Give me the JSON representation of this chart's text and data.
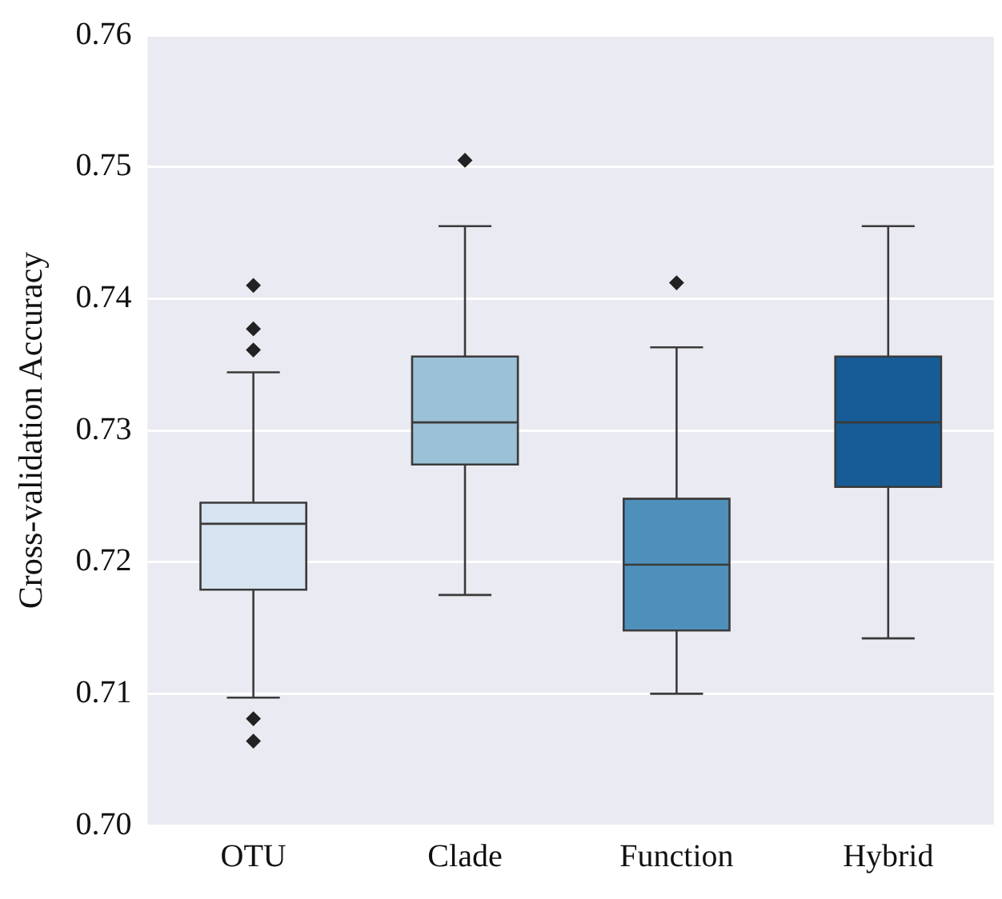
{
  "chart_data": {
    "type": "box",
    "ylabel": "Cross-validation Accuracy",
    "categories": [
      "OTU",
      "Clade",
      "Function",
      "Hybrid"
    ],
    "colors": [
      "#d6e3f0",
      "#9bc1d6",
      "#4f90bb",
      "#175c96"
    ],
    "boxes": [
      {
        "low": 0.7097,
        "q1": 0.7179,
        "median": 0.7229,
        "q3": 0.7245,
        "high": 0.7344,
        "outliers": [
          0.741,
          0.7377,
          0.7361,
          0.7081,
          0.7064
        ]
      },
      {
        "low": 0.7175,
        "q1": 0.7274,
        "median": 0.7306,
        "q3": 0.7356,
        "high": 0.7455,
        "outliers": [
          0.7505
        ]
      },
      {
        "low": 0.71,
        "q1": 0.7148,
        "median": 0.7198,
        "q3": 0.7248,
        "high": 0.7363,
        "outliers": [
          0.7412
        ]
      },
      {
        "low": 0.7142,
        "q1": 0.7257,
        "median": 0.7306,
        "q3": 0.7356,
        "high": 0.7455
      }
    ],
    "ylim": [
      0.7,
      0.76
    ],
    "yticks": [
      {
        "value": 0.7,
        "label": "0.70"
      },
      {
        "value": 0.71,
        "label": "0.71"
      },
      {
        "value": 0.72,
        "label": "0.72"
      },
      {
        "value": 0.73,
        "label": "0.73"
      },
      {
        "value": 0.74,
        "label": "0.74"
      },
      {
        "value": 0.75,
        "label": "0.75"
      },
      {
        "value": 0.76,
        "label": "0.76"
      }
    ],
    "grid": "y",
    "marker": "diamond"
  }
}
